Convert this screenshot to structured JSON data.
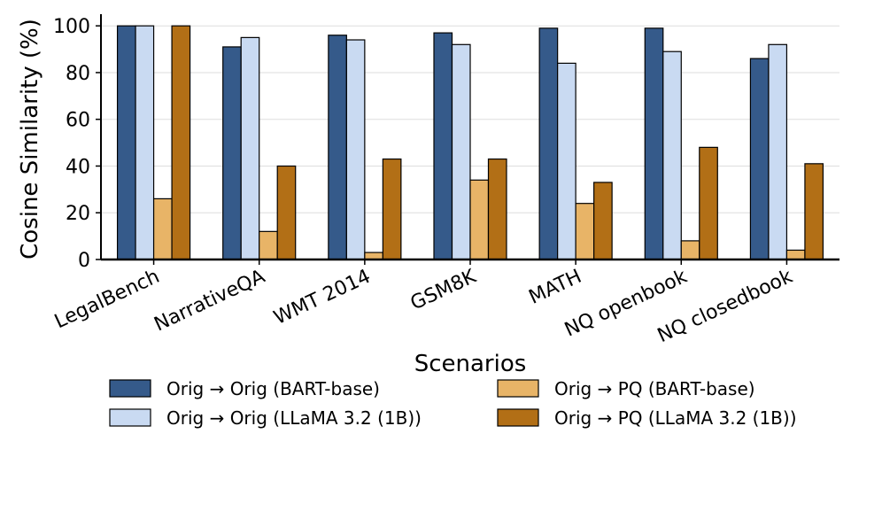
{
  "chart_data": {
    "type": "bar",
    "xlabel": "Scenarios",
    "ylabel": "Cosine Similarity (%)",
    "ylim": [
      0,
      105
    ],
    "yticks": [
      0,
      20,
      40,
      60,
      80,
      100
    ],
    "grid": "horizontal",
    "legend_position": "bottom",
    "categories": [
      "LegalBench",
      "NarrativeQA",
      "WMT 2014",
      "GSM8K",
      "MATH",
      "NQ openbook",
      "NQ closedbook"
    ],
    "series": [
      {
        "name": "Orig → Orig (BART-base)",
        "color": "#355a8a",
        "values": [
          100,
          91,
          96,
          97,
          99,
          99,
          86
        ]
      },
      {
        "name": "Orig → Orig (LLaMA 3.2 (1B))",
        "color": "#c9daf2",
        "values": [
          100,
          95,
          94,
          92,
          84,
          89,
          92
        ]
      },
      {
        "name": "Orig → PQ (BART-base)",
        "color": "#e8b467",
        "values": [
          26,
          12,
          3,
          34,
          24,
          8,
          4
        ]
      },
      {
        "name": "Orig → PQ (LLaMA 3.2 (1B))",
        "color": "#b26f16",
        "values": [
          100,
          40,
          43,
          43,
          33,
          48,
          41
        ]
      }
    ]
  }
}
